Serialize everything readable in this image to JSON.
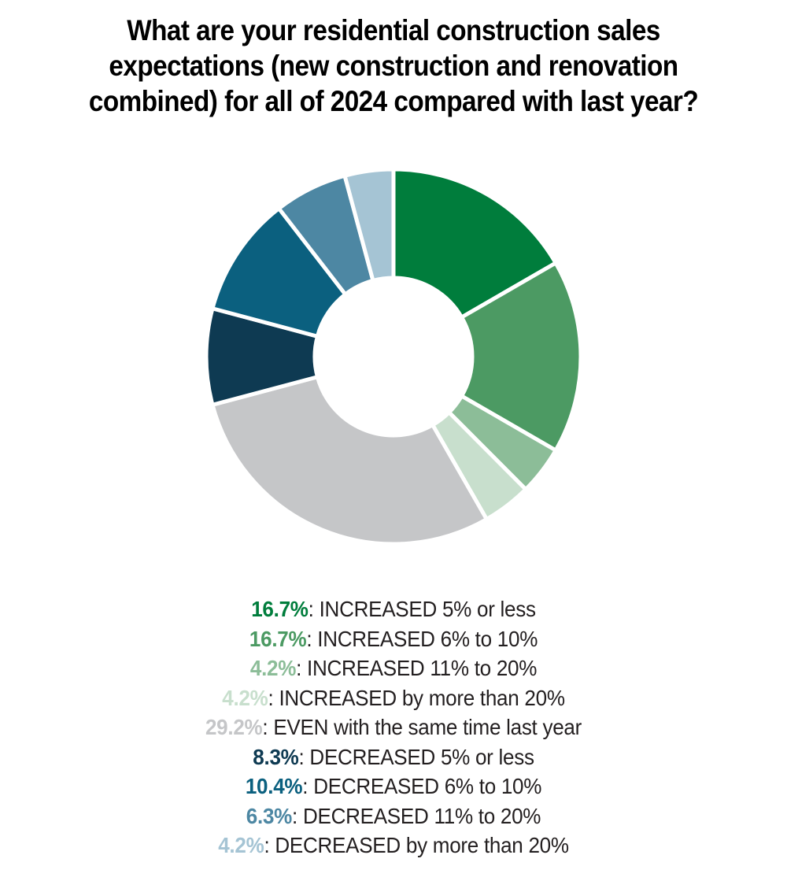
{
  "title_lines": [
    "What are your residential construction sales",
    "expectations (new construction and renovation",
    "combined) for all of 2024 compared with last year?"
  ],
  "chart_data": {
    "type": "pie",
    "subtype": "donut",
    "title": "What are your residential construction sales expectations (new construction and renovation combined) for all of 2024 compared with last year?",
    "start_angle_deg": 0,
    "direction": "clockwise",
    "inner_radius_ratio": 0.42,
    "legend_position": "bottom",
    "separator": ":",
    "background_color": "#ffffff",
    "title_color": "#000000",
    "legend_text_color": "#231f20",
    "slices": [
      {
        "pct_text": "16.7%",
        "value": 16.7,
        "label": "INCREASED 5% or less",
        "color": "#007d3c"
      },
      {
        "pct_text": "16.7%",
        "value": 16.7,
        "label": "INCREASED 6% to 10%",
        "color": "#4c9a63"
      },
      {
        "pct_text": "4.2%",
        "value": 4.2,
        "label": "INCREASED 11% to 20%",
        "color": "#8cbd98"
      },
      {
        "pct_text": "4.2%",
        "value": 4.2,
        "label": "INCREASED by more than 20%",
        "color": "#c8dfcd"
      },
      {
        "pct_text": "29.2%",
        "value": 29.2,
        "label": "EVEN with the same time last year",
        "color": "#c5c6c8"
      },
      {
        "pct_text": "8.3%",
        "value": 8.3,
        "label": "DECREASED 5% or less",
        "color": "#0e3a52"
      },
      {
        "pct_text": "10.4%",
        "value": 10.4,
        "label": "DECREASED 6% to 10%",
        "color": "#0b607f"
      },
      {
        "pct_text": "6.3%",
        "value": 6.3,
        "label": "DECREASED 11% to 20%",
        "color": "#4d87a3"
      },
      {
        "pct_text": "4.2%",
        "value": 4.2,
        "label": "DECREASED by more than 20%",
        "color": "#a5c4d4"
      }
    ]
  }
}
